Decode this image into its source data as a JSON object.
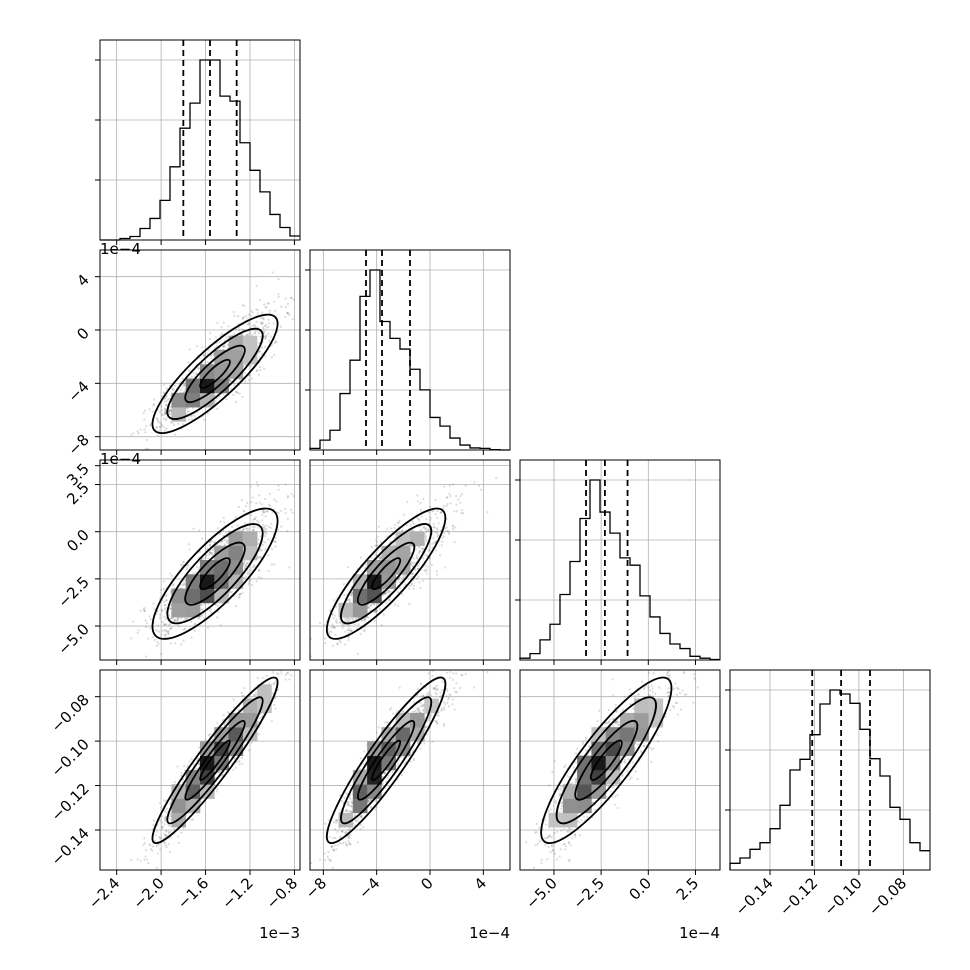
{
  "chart_data": {
    "type": "corner",
    "parameters": [
      {
        "range": [
          -2.55,
          -0.75
        ],
        "ticks": [
          -2.4,
          -2.0,
          -1.6,
          -1.2,
          -0.8
        ],
        "tick_labels": [
          "−2.4",
          "−2.0",
          "−1.6",
          "−1.2",
          "−0.8"
        ],
        "offset_label": "1e−3",
        "center": -1.52,
        "sigma": 0.25,
        "skew": 0.6,
        "corr_with": {}
      },
      {
        "range": [
          -9.0,
          6.0
        ],
        "ticks": [
          -8,
          -4,
          0,
          4
        ],
        "tick_labels": [
          "−8",
          "−4",
          "0",
          "4"
        ],
        "offset_label": "1e−4",
        "center": -3.6,
        "sigma": 1.6,
        "skew": 2.5,
        "corr_with": {
          "0": 0.85
        }
      },
      {
        "range": [
          -6.8,
          3.8
        ],
        "ticks": [
          -5.0,
          -2.5,
          0.0,
          2.5
        ],
        "tick_labels": [
          "−5.0",
          "−2.5",
          "0.0",
          "2.5"
        ],
        "y_tick_labels": [
          "−5.0",
          "−2.5",
          "0.0",
          "2.5",
          "3.5"
        ],
        "y_ticks": [
          -5.0,
          -2.5,
          0.0,
          2.5,
          3.5
        ],
        "offset_label": "1e−4",
        "center": -2.4,
        "sigma": 1.1,
        "skew": 1.8,
        "corr_with": {
          "0": 0.4,
          "1": 0.7
        }
      },
      {
        "range": [
          -0.158,
          -0.068
        ],
        "ticks": [
          -0.14,
          -0.12,
          -0.1,
          -0.08
        ],
        "tick_labels": [
          "−0.14",
          "−0.12",
          "−0.10",
          "−0.08"
        ],
        "offset_label": "",
        "center": -0.108,
        "sigma": 0.012,
        "skew": 0.0,
        "corr_with": {
          "0": 0.95,
          "1": 0.7,
          "2": 0.2
        }
      }
    ],
    "quantiles": [
      [
        -1.8,
        -1.56,
        -1.32
      ],
      [
        -4.8,
        -3.6,
        -1.5
      ],
      [
        -3.3,
        -2.3,
        -1.1
      ],
      [
        -0.121,
        -0.108,
        -0.095
      ]
    ],
    "row_offset_labels": [
      "1e−4",
      "1e−4"
    ]
  }
}
